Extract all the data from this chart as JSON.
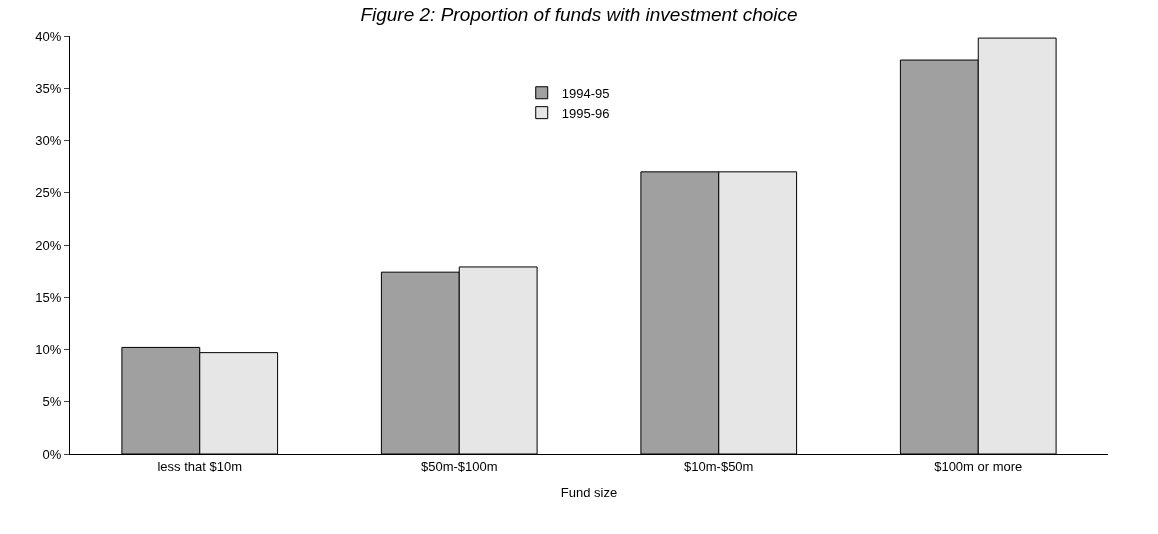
{
  "chart_data": {
    "type": "bar",
    "title": "Figure 2: Proportion of funds with investment choice",
    "xlabel": "Fund size",
    "categories": [
      "less that $10m",
      "$50m-$100m",
      "$10m-$50m",
      "$100m or more"
    ],
    "series": [
      {
        "name": "1994-95",
        "color": "#a0a0a0",
        "values": [
          10.2,
          17.4,
          27.0,
          37.7
        ]
      },
      {
        "name": "1995-96",
        "color": "#e6e6e6",
        "values": [
          9.7,
          17.9,
          27.0,
          39.8
        ]
      }
    ],
    "ylim": [
      0,
      40
    ],
    "yticks": [
      {
        "value": 0,
        "label": "0%"
      },
      {
        "value": 5,
        "label": "5%"
      },
      {
        "value": 10,
        "label": "10%"
      },
      {
        "value": 15,
        "label": "15%"
      },
      {
        "value": 20,
        "label": "20%"
      },
      {
        "value": 25,
        "label": "25%"
      },
      {
        "value": 30,
        "label": "30%"
      },
      {
        "value": 35,
        "label": "35%"
      },
      {
        "value": 40,
        "label": "40%"
      }
    ],
    "grid": false,
    "legend": "top center"
  }
}
